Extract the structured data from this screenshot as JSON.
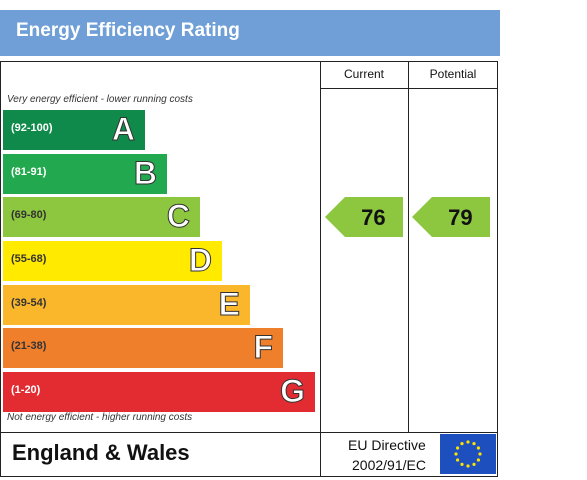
{
  "title": "Energy Efficiency Rating",
  "columns": {
    "current": "Current",
    "potential": "Potential"
  },
  "notes": {
    "top": "Very energy efficient - lower running costs",
    "bottom": "Not energy efficient - higher running costs"
  },
  "footer": {
    "region": "England & Wales",
    "directive_line1": "EU Directive",
    "directive_line2": "2002/91/EC",
    "flag_icon": "eu-flag-icon"
  },
  "chart_data": {
    "type": "bar",
    "title": "Energy Efficiency Rating",
    "bands": [
      {
        "letter": "A",
        "range": "(92-100)",
        "min": 92,
        "max": 100,
        "color": "#0f8a4a",
        "range_color": "#ffffff"
      },
      {
        "letter": "B",
        "range": "(81-91)",
        "min": 81,
        "max": 91,
        "color": "#22a84e",
        "range_color": "#ffffff"
      },
      {
        "letter": "C",
        "range": "(69-80)",
        "min": 69,
        "max": 80,
        "color": "#8dc63f",
        "range_color": "#333333"
      },
      {
        "letter": "D",
        "range": "(55-68)",
        "min": 55,
        "max": 68,
        "color": "#ffea00",
        "range_color": "#333333"
      },
      {
        "letter": "E",
        "range": "(39-54)",
        "min": 39,
        "max": 54,
        "color": "#fbb72c",
        "range_color": "#333333"
      },
      {
        "letter": "F",
        "range": "(21-38)",
        "min": 21,
        "max": 38,
        "color": "#f07f2c",
        "range_color": "#333333"
      },
      {
        "letter": "G",
        "range": "(1-20)",
        "min": 1,
        "max": 20,
        "color": "#e32b32",
        "range_color": "#ffffff"
      }
    ],
    "current": 76,
    "potential": 79,
    "indicator_color": "#8dc63f"
  }
}
